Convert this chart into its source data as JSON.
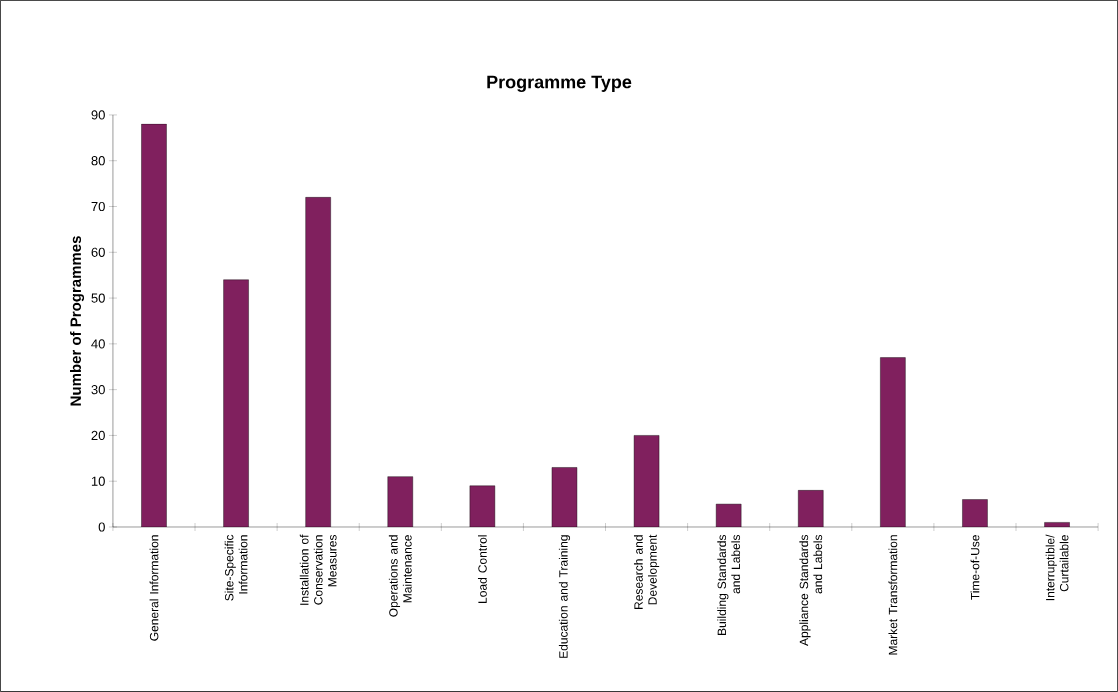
{
  "chart_data": {
    "type": "bar",
    "title": "Programme Type",
    "ylabel": "Number of Programmes",
    "categories": [
      "General Information",
      "Site-Specific Information",
      "Installation of Conservation Measures",
      "Operations and Maintenance",
      "Load Control",
      "Education and Training",
      "Research and Development",
      "Building Standards and Labels",
      "Appliance Standards and Labels",
      "Market Transformation",
      "Time-of-Use",
      "Interruptible/ Curtailable"
    ],
    "values": [
      88,
      54,
      72,
      11,
      9,
      13,
      20,
      5,
      8,
      37,
      6,
      1
    ],
    "color": "#80205e",
    "ylim": [
      0,
      90
    ],
    "yticks": [
      0,
      10,
      20,
      30,
      40,
      50,
      60,
      70,
      80,
      90
    ]
  }
}
